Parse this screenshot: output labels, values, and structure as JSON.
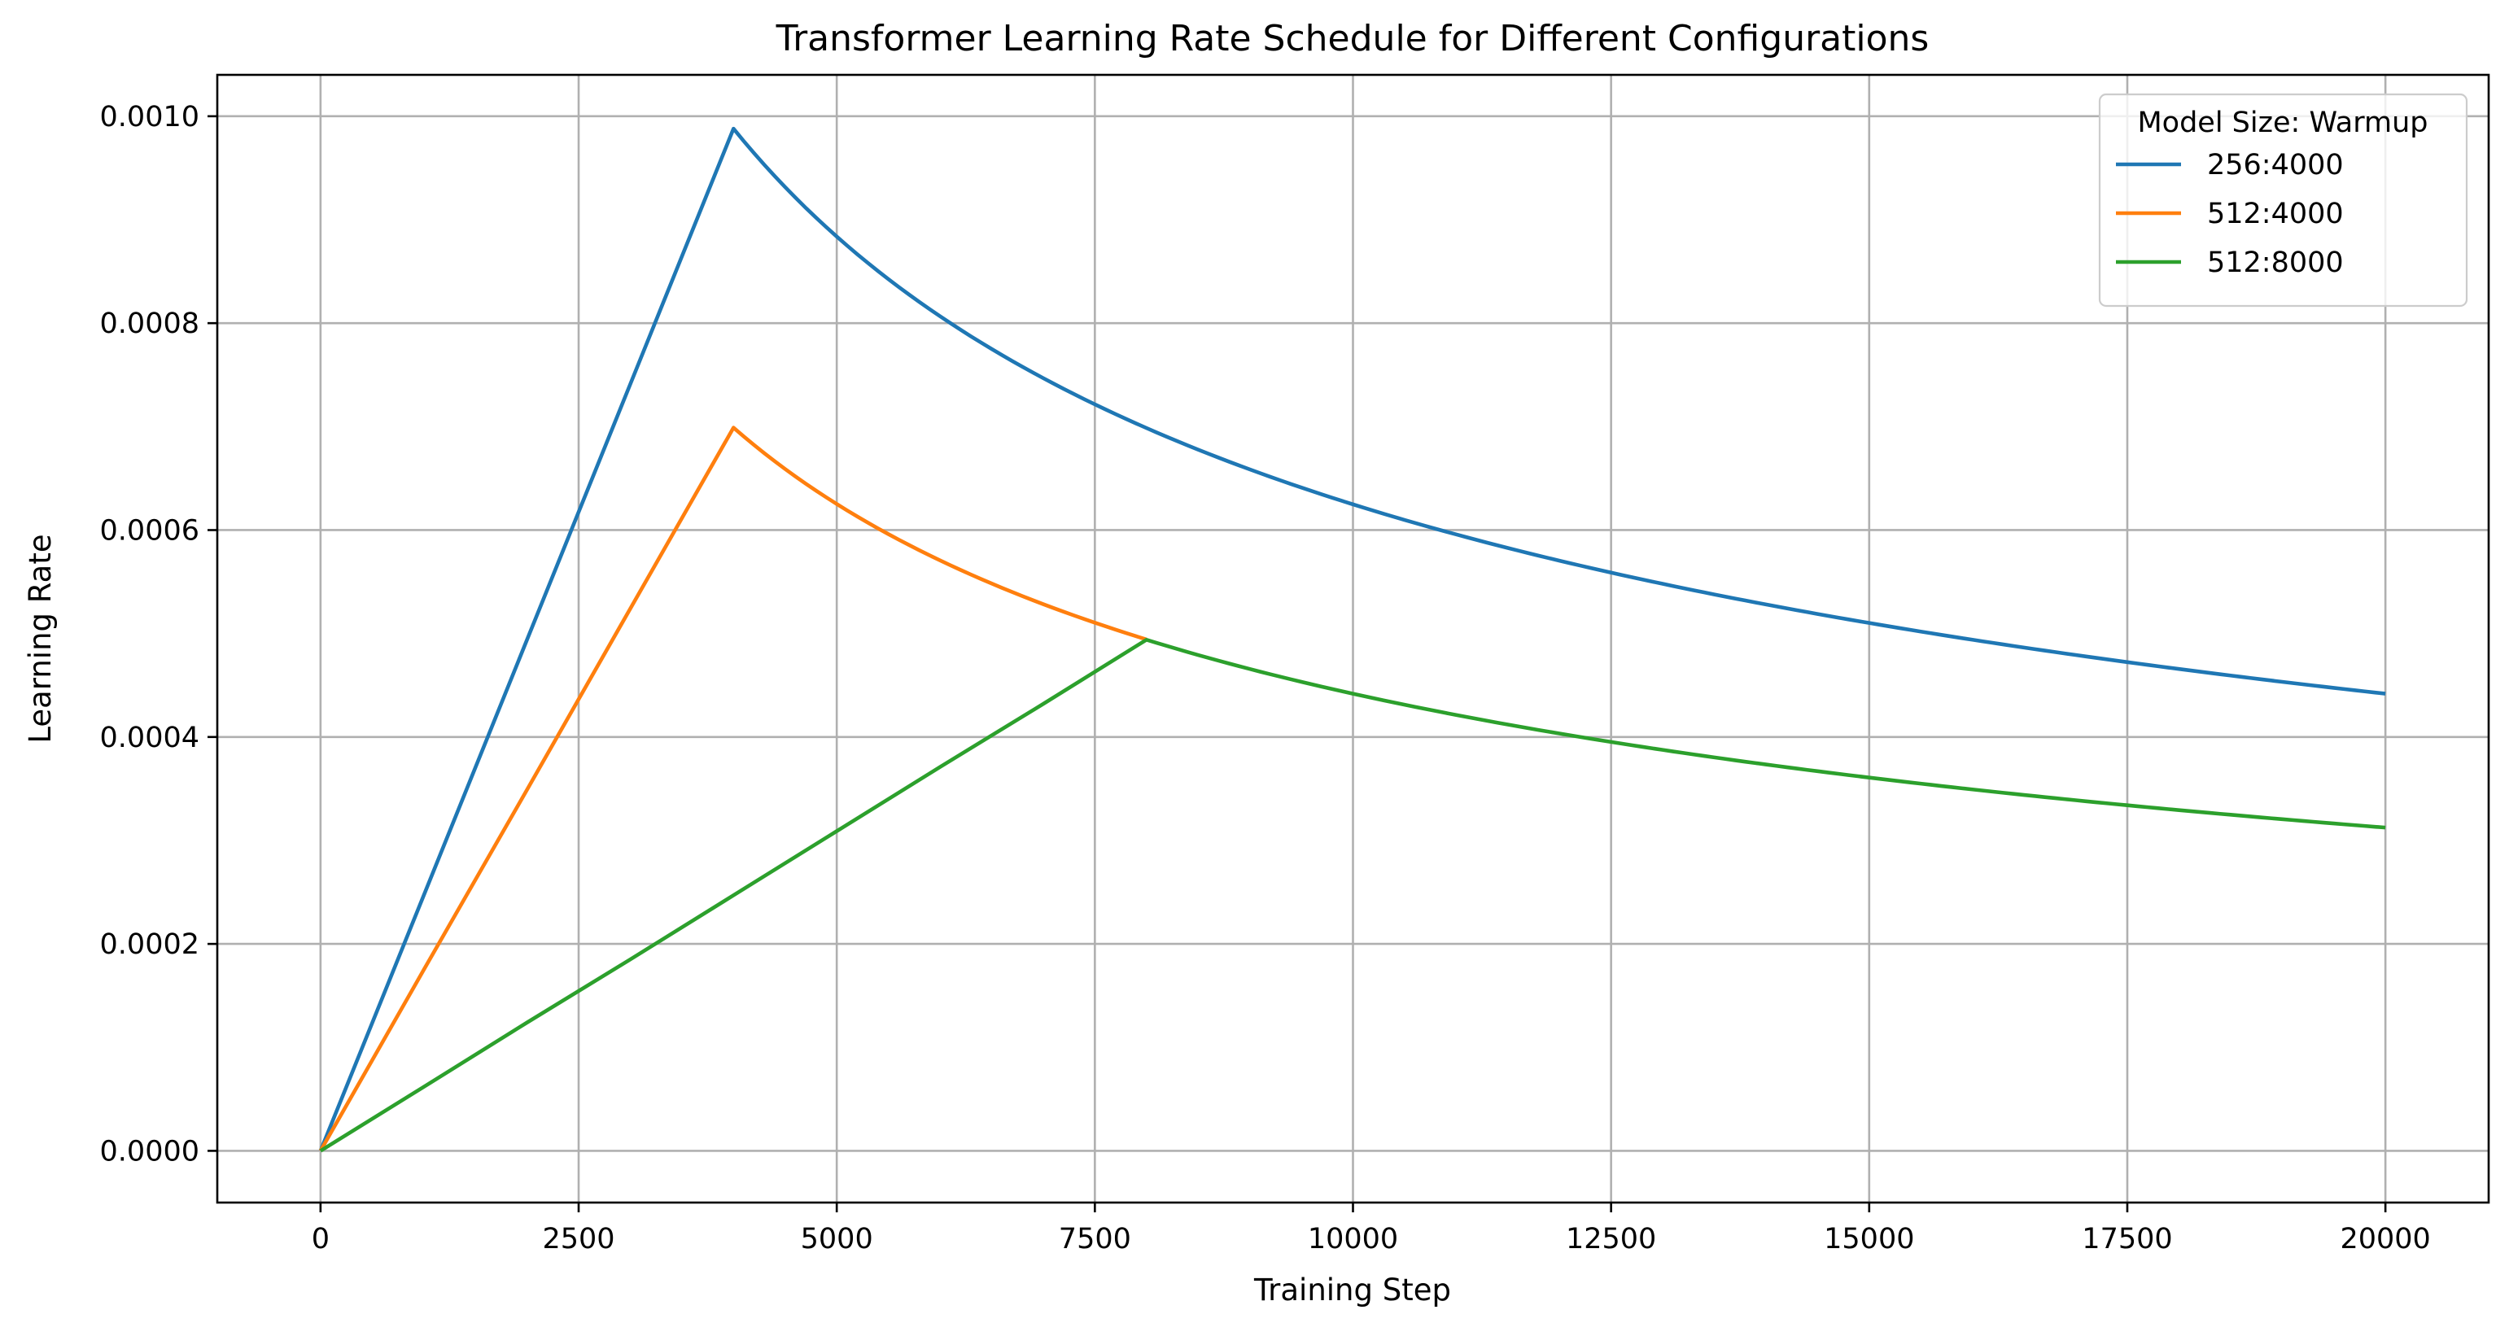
{
  "chart_data": {
    "type": "line",
    "title": "Transformer Learning Rate Schedule for Different Configurations",
    "xlabel": "Training Step",
    "ylabel": "Learning Rate",
    "xlim": [
      -1000,
      21000
    ],
    "ylim": [
      -5e-05,
      0.00104
    ],
    "xticks": [
      0,
      2500,
      5000,
      7500,
      10000,
      12500,
      15000,
      17500,
      20000
    ],
    "xtick_labels": [
      "0",
      "2500",
      "5000",
      "7500",
      "10000",
      "12500",
      "15000",
      "17500",
      "20000"
    ],
    "yticks": [
      0,
      0.0002,
      0.0004,
      0.0006,
      0.0008,
      0.001
    ],
    "ytick_labels": [
      "0.0000",
      "0.0002",
      "0.0004",
      "0.0006",
      "0.0008",
      "0.0010"
    ],
    "grid": true,
    "legend": {
      "title": "Model Size: Warmup",
      "placement": "top-right"
    },
    "series": [
      {
        "name": "256:4000",
        "color": "#1f77b4",
        "x": [
          0,
          1000,
          2000,
          3000,
          4000,
          5000,
          6000,
          7000,
          8000,
          9000,
          10000,
          11000,
          12000,
          13000,
          14000,
          15000,
          16000,
          17000,
          18000,
          19000,
          20000
        ],
        "y": [
          0,
          0.000247,
          0.000494,
          0.000741,
          0.000988,
          0.000884,
          0.000807,
          0.000747,
          0.000699,
          0.000659,
          0.000625,
          0.000596,
          0.000571,
          0.000548,
          0.000528,
          0.00051,
          0.000494,
          0.000479,
          0.000466,
          0.000453,
          0.000442
        ]
      },
      {
        "name": "512:4000",
        "color": "#ff7f0e",
        "x": [
          0,
          1000,
          2000,
          3000,
          4000,
          5000,
          6000,
          7000,
          8000
        ],
        "y": [
          0,
          0.000175,
          0.000349,
          0.000524,
          0.000699,
          0.000625,
          0.000571,
          0.000528,
          0.000494
        ]
      },
      {
        "name": "512:8000",
        "color": "#2ca02c",
        "x": [
          0,
          1000,
          2000,
          3000,
          4000,
          5000,
          6000,
          7000,
          8000,
          9000,
          10000,
          11000,
          12000,
          13000,
          14000,
          15000,
          16000,
          17000,
          18000,
          19000,
          20000
        ],
        "y": [
          0,
          6.18e-05,
          0.000124,
          0.000185,
          0.000247,
          0.000309,
          0.000371,
          0.000432,
          0.000494,
          0.000466,
          0.000442,
          0.000421,
          0.000403,
          0.000388,
          0.000374,
          0.000361,
          0.000349,
          0.000339,
          0.000329,
          0.000321,
          0.000312
        ]
      }
    ]
  }
}
